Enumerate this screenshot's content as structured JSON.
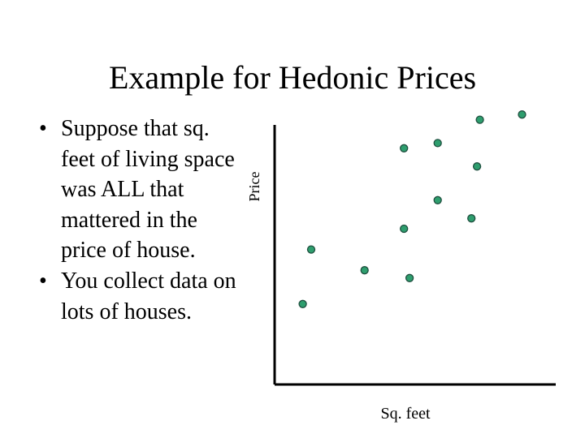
{
  "slide": {
    "title": "Example for Hedonic Prices",
    "bullets": [
      "Suppose that sq. feet of living space was ALL that mattered in the price of house.",
      "You collect data on lots of houses."
    ],
    "bullet_glyph": "•"
  },
  "chart_data": {
    "type": "scatter",
    "title": "",
    "xlabel": "Sq. feet",
    "ylabel": "Price",
    "grid": false,
    "xticks": false,
    "yticks": false,
    "marker_color": "#2e9e6e",
    "marker_edge_color": "#1f4f3f",
    "points": [
      {
        "x": 0.1,
        "y": 0.31
      },
      {
        "x": 0.13,
        "y": 0.52
      },
      {
        "x": 0.32,
        "y": 0.44
      },
      {
        "x": 0.46,
        "y": 0.91
      },
      {
        "x": 0.46,
        "y": 0.6
      },
      {
        "x": 0.48,
        "y": 0.41
      },
      {
        "x": 0.58,
        "y": 0.93
      },
      {
        "x": 0.58,
        "y": 0.71
      },
      {
        "x": 0.7,
        "y": 0.64
      },
      {
        "x": 0.72,
        "y": 0.84
      },
      {
        "x": 0.73,
        "y": 1.02
      },
      {
        "x": 0.88,
        "y": 1.04
      }
    ]
  }
}
